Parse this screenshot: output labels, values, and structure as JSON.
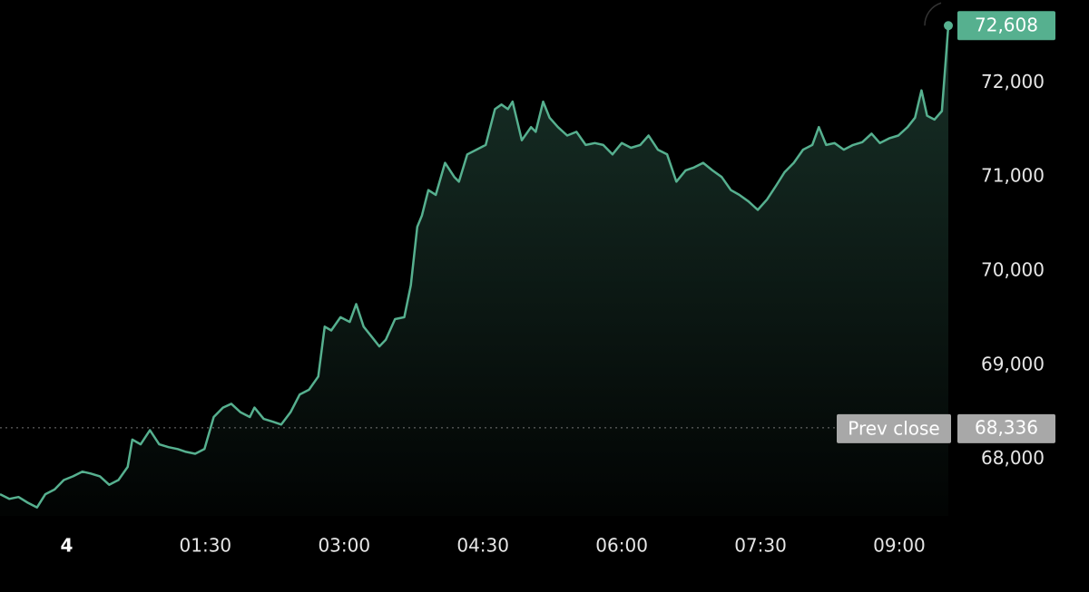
{
  "chart_data": {
    "type": "line",
    "x": [
      -0.72,
      -0.62,
      -0.52,
      -0.42,
      -0.32,
      -0.23,
      -0.13,
      -0.03,
      0.07,
      0.17,
      0.26,
      0.36,
      0.46,
      0.56,
      0.66,
      0.71,
      0.8,
      0.9,
      1.0,
      1.1,
      1.2,
      1.29,
      1.39,
      1.49,
      1.59,
      1.69,
      1.78,
      1.88,
      1.98,
      2.03,
      2.13,
      2.23,
      2.32,
      2.42,
      2.52,
      2.62,
      2.72,
      2.79,
      2.86,
      2.96,
      3.06,
      3.13,
      3.21,
      3.3,
      3.38,
      3.45,
      3.55,
      3.65,
      3.72,
      3.79,
      3.84,
      3.91,
      3.99,
      4.09,
      4.19,
      4.24,
      4.33,
      4.43,
      4.53,
      4.63,
      4.7,
      4.77,
      4.82,
      4.92,
      5.02,
      5.07,
      5.15,
      5.22,
      5.31,
      5.41,
      5.51,
      5.61,
      5.71,
      5.8,
      5.9,
      6.0,
      6.1,
      6.2,
      6.29,
      6.39,
      6.49,
      6.59,
      6.69,
      6.78,
      6.88,
      6.98,
      7.08,
      7.18,
      7.27,
      7.37,
      7.47,
      7.57,
      7.67,
      7.76,
      7.86,
      7.96,
      8.06,
      8.13,
      8.21,
      8.3,
      8.4,
      8.5,
      8.6,
      8.7,
      8.79,
      8.89,
      8.99,
      9.09,
      9.17,
      9.24,
      9.3,
      9.38,
      9.46,
      9.53
    ],
    "values": [
      67630,
      67580,
      67600,
      67540,
      67490,
      67630,
      67680,
      67780,
      67820,
      67870,
      67850,
      67820,
      67730,
      67780,
      67920,
      68210,
      68160,
      68310,
      68160,
      68130,
      68110,
      68080,
      68060,
      68110,
      68450,
      68550,
      68590,
      68500,
      68450,
      68550,
      68430,
      68400,
      68370,
      68500,
      68690,
      68740,
      68880,
      69410,
      69370,
      69510,
      69460,
      69650,
      69410,
      69300,
      69200,
      69270,
      69490,
      69510,
      69850,
      70470,
      70590,
      70860,
      70810,
      71150,
      71000,
      70950,
      71240,
      71290,
      71340,
      71720,
      71770,
      71720,
      71800,
      71390,
      71530,
      71480,
      71800,
      71630,
      71530,
      71440,
      71480,
      71340,
      71360,
      71340,
      71240,
      71360,
      71310,
      71340,
      71440,
      71290,
      71240,
      70950,
      71070,
      71100,
      71150,
      71070,
      71000,
      70860,
      70810,
      70740,
      70650,
      70760,
      70910,
      71050,
      71150,
      71290,
      71340,
      71530,
      71340,
      71360,
      71290,
      71340,
      71370,
      71460,
      71360,
      71410,
      71440,
      71530,
      71630,
      71920,
      71650,
      71610,
      71700,
      72608
    ],
    "color": "#56b08f",
    "last_label": "72,608",
    "reference_line": {
      "label": "Prev close",
      "value": 68336,
      "value_label": "68,336"
    },
    "xlim": [
      -0.72,
      9.53
    ],
    "xticks": [
      {
        "value": 0,
        "label": "4"
      },
      {
        "value": 1.5,
        "label": "01:30"
      },
      {
        "value": 3,
        "label": "03:00"
      },
      {
        "value": 4.5,
        "label": "04:30"
      },
      {
        "value": 6,
        "label": "06:00"
      },
      {
        "value": 7.5,
        "label": "07:30"
      },
      {
        "value": 9,
        "label": "09:00"
      }
    ],
    "ylim": [
      67400,
      72880
    ],
    "yticks": [
      {
        "value": 68000,
        "label": "68,000"
      },
      {
        "value": 69000,
        "label": "69,000"
      },
      {
        "value": 70000,
        "label": "70,000"
      },
      {
        "value": 71000,
        "label": "71,000"
      },
      {
        "value": 72000,
        "label": "72,000"
      }
    ]
  }
}
